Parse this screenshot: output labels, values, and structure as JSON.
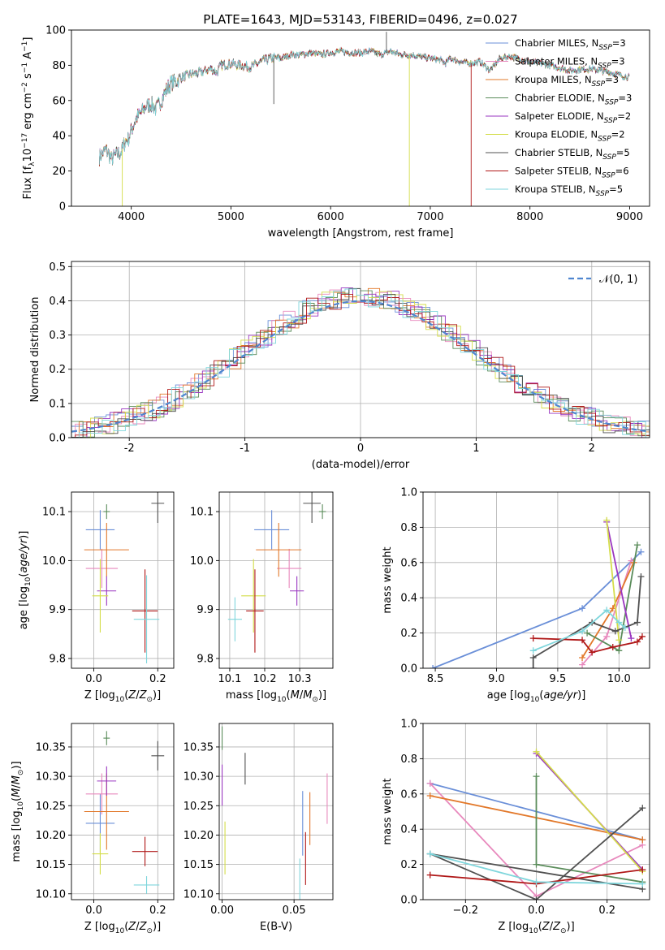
{
  "title": "PLATE=1643, MJD=53143, FIBERID=0496, z=0.027",
  "colors": {
    "Chabrier MILES": "#6a8fd8",
    "Salpeter MILES": "#e889bd",
    "Kroupa MILES": "#e2782a",
    "Chabrier ELODIE": "#5a8c5a",
    "Salpeter ELODIE": "#9a36c0",
    "Kroupa ELODIE": "#d4dd4a",
    "Chabrier STELIB": "#505050",
    "Salpeter STELIB": "#b01818",
    "Kroupa STELIB": "#7fd6dc"
  },
  "chart_data": [
    {
      "id": "spectrum",
      "type": "line",
      "xlabel": "wavelength [Angstrom, rest frame]",
      "ylabel": "Flux [f_λ10^-17 erg cm^-2 s^-1 A^-1]",
      "xlim": [
        3400,
        9200
      ],
      "ylim": [
        0,
        100
      ],
      "xticks": [
        4000,
        5000,
        6000,
        7000,
        8000,
        9000
      ],
      "yticks": [
        0,
        20,
        40,
        60,
        80,
        100
      ],
      "grid": false,
      "legend_position": "top-right",
      "legend": [
        {
          "name": "Chabrier MILES",
          "nssp": 3
        },
        {
          "name": "Salpeter MILES",
          "nssp": 3
        },
        {
          "name": "Kroupa MILES",
          "nssp": 3
        },
        {
          "name": "Chabrier ELODIE",
          "nssp": 3
        },
        {
          "name": "Salpeter ELODIE",
          "nssp": 2
        },
        {
          "name": "Kroupa ELODIE",
          "nssp": 2
        },
        {
          "name": "Chabrier STELIB",
          "nssp": 5
        },
        {
          "name": "Salpeter STELIB",
          "nssp": 6
        },
        {
          "name": "Kroupa STELIB",
          "nssp": 5
        }
      ],
      "continuum": [
        [
          3680,
          28
        ],
        [
          3750,
          32
        ],
        [
          3800,
          27
        ],
        [
          3850,
          29
        ],
        [
          3900,
          31
        ],
        [
          3940,
          37
        ],
        [
          3970,
          38
        ],
        [
          4000,
          43
        ],
        [
          4050,
          50
        ],
        [
          4100,
          53
        ],
        [
          4150,
          57
        ],
        [
          4200,
          58
        ],
        [
          4250,
          55
        ],
        [
          4300,
          60
        ],
        [
          4350,
          66
        ],
        [
          4400,
          70
        ],
        [
          4450,
          71
        ],
        [
          4500,
          73
        ],
        [
          4600,
          75
        ],
        [
          4700,
          76
        ],
        [
          4800,
          78
        ],
        [
          4860,
          76
        ],
        [
          4900,
          80
        ],
        [
          5000,
          81
        ],
        [
          5100,
          80
        ],
        [
          5200,
          79
        ],
        [
          5300,
          82
        ],
        [
          5400,
          84
        ],
        [
          5500,
          84
        ],
        [
          5600,
          86
        ],
        [
          5700,
          86
        ],
        [
          5800,
          87
        ],
        [
          5900,
          86
        ],
        [
          6000,
          87
        ],
        [
          6100,
          88
        ],
        [
          6200,
          87
        ],
        [
          6300,
          87
        ],
        [
          6400,
          88
        ],
        [
          6500,
          86
        ],
        [
          6560,
          87
        ],
        [
          6600,
          88
        ],
        [
          6700,
          86
        ],
        [
          6800,
          86
        ],
        [
          6900,
          85
        ],
        [
          7000,
          84
        ],
        [
          7100,
          83
        ],
        [
          7150,
          81
        ],
        [
          7200,
          84
        ],
        [
          7300,
          82
        ],
        [
          7400,
          81
        ],
        [
          7500,
          82
        ],
        [
          7600,
          77
        ],
        [
          7700,
          84
        ],
        [
          7800,
          85
        ],
        [
          8000,
          82
        ],
        [
          8200,
          80
        ],
        [
          8400,
          77
        ],
        [
          8600,
          78
        ],
        [
          8800,
          76
        ],
        [
          9000,
          73
        ]
      ],
      "features": [
        {
          "series": "Kroupa ELODIE",
          "x": 3910,
          "to_y": 0
        },
        {
          "series": "Chabrier STELIB",
          "x": 5430,
          "to_y": 58
        },
        {
          "series": "Kroupa ELODIE",
          "x": 6790,
          "to_y": 0
        },
        {
          "series": "Salpeter STELIB",
          "x": 7410,
          "to_y": 0
        },
        {
          "series": "Chabrier STELIB",
          "x": 6560,
          "to_y": 99
        }
      ]
    },
    {
      "id": "residuals",
      "type": "line",
      "xlabel": "(data-model)/error",
      "ylabel": "Normed distribution",
      "xlim": [
        -2.5,
        2.5
      ],
      "ylim": [
        0,
        0.515
      ],
      "xticks": [
        -2,
        -1,
        0,
        1,
        2
      ],
      "yticks": [
        0.0,
        0.1,
        0.2,
        0.3,
        0.4,
        0.5
      ],
      "grid": true,
      "legend_position": "top-right",
      "reference_label": "𝒩(0, 1)",
      "bin_width": 0.1
    },
    {
      "id": "z-age",
      "type": "scatter",
      "xlabel": "Z [log10(Z/Z⊙)]",
      "ylabel": "age  [log10(age/yr)]",
      "xlim": [
        -0.07,
        0.25
      ],
      "ylim": [
        9.78,
        10.14
      ],
      "xticks": [
        0.0,
        0.2
      ],
      "yticks": [
        9.8,
        9.9,
        10.0,
        10.1
      ],
      "grid": true,
      "points": [
        {
          "series": "Chabrier MILES",
          "x": 0.02,
          "y": 10.063,
          "xerr": 0.045,
          "yerr": 0.04
        },
        {
          "series": "Salpeter MILES",
          "x": 0.025,
          "y": 9.984,
          "xerr": 0.05,
          "yerr": 0.04
        },
        {
          "series": "Kroupa MILES",
          "x": 0.04,
          "y": 10.022,
          "xerr": 0.07,
          "yerr": 0.055
        },
        {
          "series": "Chabrier ELODIE",
          "x": 0.04,
          "y": 10.1,
          "xerr": 0.01,
          "yerr": 0.015
        },
        {
          "series": "Salpeter ELODIE",
          "x": 0.04,
          "y": 9.938,
          "xerr": 0.03,
          "yerr": 0.03
        },
        {
          "series": "Kroupa ELODIE",
          "x": 0.02,
          "y": 9.928,
          "xerr": 0.025,
          "yerr": 0.075
        },
        {
          "series": "Chabrier STELIB",
          "x": 0.2,
          "y": 10.117,
          "xerr": 0.02,
          "yerr": 0.04
        },
        {
          "series": "Salpeter STELIB",
          "x": 0.16,
          "y": 9.897,
          "xerr": 0.04,
          "yerr": 0.085
        },
        {
          "series": "Kroupa STELIB",
          "x": 0.165,
          "y": 9.88,
          "xerr": 0.04,
          "yerr": 0.09
        }
      ]
    },
    {
      "id": "mass-age",
      "type": "scatter",
      "xlabel": "mass [log10(M/M⊙)]",
      "ylabel": "",
      "xlim": [
        10.07,
        10.395
      ],
      "ylim": [
        9.78,
        10.14
      ],
      "xticks": [
        10.1,
        10.2,
        10.3
      ],
      "yticks": [
        9.8,
        9.9,
        10.0,
        10.1
      ],
      "grid": true,
      "points": [
        {
          "series": "Chabrier MILES",
          "x": 10.22,
          "y": 10.063,
          "xerr": 0.05,
          "yerr": 0.04
        },
        {
          "series": "Salpeter MILES",
          "x": 10.27,
          "y": 9.984,
          "xerr": 0.035,
          "yerr": 0.04
        },
        {
          "series": "Kroupa MILES",
          "x": 10.24,
          "y": 10.022,
          "xerr": 0.065,
          "yerr": 0.055
        },
        {
          "series": "Chabrier ELODIE",
          "x": 10.365,
          "y": 10.1,
          "xerr": 0.01,
          "yerr": 0.015
        },
        {
          "series": "Salpeter ELODIE",
          "x": 10.292,
          "y": 9.938,
          "xerr": 0.02,
          "yerr": 0.03
        },
        {
          "series": "Kroupa ELODIE",
          "x": 10.168,
          "y": 9.928,
          "xerr": 0.035,
          "yerr": 0.075
        },
        {
          "series": "Chabrier STELIB",
          "x": 10.335,
          "y": 10.117,
          "xerr": 0.025,
          "yerr": 0.04
        },
        {
          "series": "Salpeter STELIB",
          "x": 10.172,
          "y": 9.897,
          "xerr": 0.025,
          "yerr": 0.085
        },
        {
          "series": "Kroupa STELIB",
          "x": 10.115,
          "y": 9.88,
          "xerr": 0.02,
          "yerr": 0.045
        }
      ]
    },
    {
      "id": "age-weight",
      "type": "line",
      "xlabel": "age  [log10(age/yr)]",
      "ylabel": "mass weight",
      "xlim": [
        8.4,
        10.25
      ],
      "ylim": [
        0,
        1
      ],
      "xticks": [
        8.5,
        9.0,
        9.5,
        10.0
      ],
      "yticks": [
        0.0,
        0.2,
        0.4,
        0.6,
        0.8,
        1.0
      ],
      "grid": true,
      "series": [
        {
          "name": "Chabrier MILES",
          "points": [
            [
              8.48,
              0.0
            ],
            [
              9.7,
              0.34
            ],
            [
              10.18,
              0.66
            ]
          ]
        },
        {
          "name": "Salpeter MILES",
          "points": [
            [
              9.7,
              0.02
            ],
            [
              9.9,
              0.18
            ],
            [
              10.1,
              0.61
            ]
          ]
        },
        {
          "name": "Kroupa MILES",
          "points": [
            [
              9.7,
              0.06
            ],
            [
              9.95,
              0.34
            ],
            [
              10.12,
              0.6
            ]
          ]
        },
        {
          "name": "Chabrier ELODIE",
          "points": [
            [
              9.74,
              0.2
            ],
            [
              10.0,
              0.1
            ],
            [
              10.15,
              0.7
            ]
          ]
        },
        {
          "name": "Salpeter ELODIE",
          "points": [
            [
              9.9,
              0.83
            ],
            [
              10.1,
              0.17
            ]
          ]
        },
        {
          "name": "Kroupa ELODIE",
          "points": [
            [
              9.9,
              0.84
            ],
            [
              10.0,
              0.16
            ]
          ]
        },
        {
          "name": "Chabrier STELIB",
          "points": [
            [
              9.3,
              0.0
            ],
            [
              9.3,
              0.06
            ],
            [
              9.78,
              0.26
            ],
            [
              9.97,
              0.21
            ],
            [
              10.15,
              0.26
            ],
            [
              10.18,
              0.52
            ]
          ]
        },
        {
          "name": "Salpeter STELIB",
          "points": [
            [
              9.3,
              0.17
            ],
            [
              9.7,
              0.16
            ],
            [
              9.78,
              0.09
            ],
            [
              9.95,
              0.12
            ],
            [
              10.15,
              0.15
            ],
            [
              10.19,
              0.18
            ]
          ]
        },
        {
          "name": "Kroupa STELIB",
          "points": [
            [
              9.3,
              0.1
            ],
            [
              9.7,
              0.21
            ],
            [
              9.9,
              0.33
            ],
            [
              10.0,
              0.26
            ],
            [
              10.05,
              0.23
            ]
          ]
        }
      ]
    },
    {
      "id": "z-mass",
      "type": "scatter",
      "xlabel": "Z [log10(Z/Z⊙)]",
      "ylabel": "mass [log10(M/M⊙)]",
      "xlim": [
        -0.07,
        0.25
      ],
      "ylim": [
        10.09,
        10.39
      ],
      "xticks": [
        0.0,
        0.2
      ],
      "yticks": [
        10.1,
        10.15,
        10.2,
        10.25,
        10.3,
        10.35
      ],
      "grid": true,
      "points": [
        {
          "series": "Chabrier MILES",
          "x": 0.02,
          "y": 10.22,
          "xerr": 0.045,
          "yerr": 0.05
        },
        {
          "series": "Salpeter MILES",
          "x": 0.025,
          "y": 10.27,
          "xerr": 0.05,
          "yerr": 0.035
        },
        {
          "series": "Kroupa MILES",
          "x": 0.04,
          "y": 10.24,
          "xerr": 0.07,
          "yerr": 0.065
        },
        {
          "series": "Chabrier ELODIE",
          "x": 0.04,
          "y": 10.365,
          "xerr": 0.01,
          "yerr": 0.012
        },
        {
          "series": "Salpeter ELODIE",
          "x": 0.04,
          "y": 10.292,
          "xerr": 0.03,
          "yerr": 0.025
        },
        {
          "series": "Kroupa ELODIE",
          "x": 0.02,
          "y": 10.168,
          "xerr": 0.025,
          "yerr": 0.035
        },
        {
          "series": "Chabrier STELIB",
          "x": 0.2,
          "y": 10.335,
          "xerr": 0.02,
          "yerr": 0.025
        },
        {
          "series": "Salpeter STELIB",
          "x": 0.16,
          "y": 10.172,
          "xerr": 0.04,
          "yerr": 0.025
        },
        {
          "series": "Kroupa STELIB",
          "x": 0.165,
          "y": 10.115,
          "xerr": 0.04,
          "yerr": 0.015
        }
      ]
    },
    {
      "id": "ebv-mass",
      "type": "scatter",
      "xlabel": "E(B-V)",
      "ylabel": "",
      "xlim": [
        -0.002,
        0.077
      ],
      "ylim": [
        10.09,
        10.39
      ],
      "xticks": [
        0.0,
        0.05
      ],
      "yticks": [
        10.1,
        10.15,
        10.2,
        10.25,
        10.3,
        10.35
      ],
      "grid": true,
      "points": [
        {
          "series": "Chabrier MILES",
          "x": 0.056,
          "y": 10.22,
          "xerr": 0,
          "yerr": 0.055
        },
        {
          "series": "Salpeter MILES",
          "x": 0.073,
          "y": 10.262,
          "xerr": 0,
          "yerr": 0.043
        },
        {
          "series": "Kroupa MILES",
          "x": 0.061,
          "y": 10.228,
          "xerr": 0,
          "yerr": 0.045
        },
        {
          "series": "Chabrier ELODIE",
          "x": 0.0,
          "y": 10.365,
          "xerr": 0,
          "yerr": 0.02
        },
        {
          "series": "Salpeter ELODIE",
          "x": 0.0,
          "y": 10.285,
          "xerr": 0,
          "yerr": 0.035
        },
        {
          "series": "Kroupa ELODIE",
          "x": 0.002,
          "y": 10.178,
          "xerr": 0,
          "yerr": 0.045
        },
        {
          "series": "Chabrier STELIB",
          "x": 0.016,
          "y": 10.313,
          "xerr": 0,
          "yerr": 0.027
        },
        {
          "series": "Salpeter STELIB",
          "x": 0.058,
          "y": 10.16,
          "xerr": 0,
          "yerr": 0.045
        },
        {
          "series": "Kroupa STELIB",
          "x": 0.054,
          "y": 10.125,
          "xerr": 0,
          "yerr": 0.035
        }
      ]
    },
    {
      "id": "z-weight",
      "type": "line",
      "xlabel": "Z [log10(Z/Z⊙)]",
      "ylabel": "mass weight",
      "xlim": [
        -0.32,
        0.32
      ],
      "ylim": [
        0,
        1
      ],
      "xticks": [
        -0.2,
        0.0,
        0.2
      ],
      "yticks": [
        0.0,
        0.2,
        0.4,
        0.6,
        0.8,
        1.0
      ],
      "grid": true,
      "series": [
        {
          "name": "Chabrier MILES",
          "points": [
            [
              -0.3,
              0.66
            ],
            [
              0.3,
              0.34
            ]
          ]
        },
        {
          "name": "Salpeter MILES",
          "points": [
            [
              -0.3,
              0.66
            ],
            [
              0.0,
              0.02
            ],
            [
              0.3,
              0.31
            ]
          ]
        },
        {
          "name": "Kroupa MILES",
          "points": [
            [
              -0.3,
              0.59
            ],
            [
              0.3,
              0.34
            ]
          ]
        },
        {
          "name": "Chabrier ELODIE",
          "points": [
            [
              0.0,
              0.7
            ],
            [
              0.0,
              0.2
            ],
            [
              0.3,
              0.1
            ]
          ]
        },
        {
          "name": "Salpeter ELODIE",
          "points": [
            [
              0.0,
              0.83
            ],
            [
              0.3,
              0.17
            ]
          ]
        },
        {
          "name": "Kroupa ELODIE",
          "points": [
            [
              0.0,
              0.84
            ],
            [
              0.3,
              0.16
            ]
          ]
        },
        {
          "name": "Chabrier STELIB",
          "points": [
            [
              0.3,
              0.52
            ],
            [
              0.0,
              0.0
            ],
            [
              -0.3,
              0.26
            ],
            [
              0.3,
              0.06
            ]
          ]
        },
        {
          "name": "Salpeter STELIB",
          "points": [
            [
              -0.3,
              0.14
            ],
            [
              0.0,
              0.09
            ],
            [
              0.3,
              0.17
            ]
          ]
        },
        {
          "name": "Kroupa STELIB",
          "points": [
            [
              -0.3,
              0.26
            ],
            [
              0.0,
              0.1
            ],
            [
              0.3,
              0.09
            ]
          ]
        }
      ]
    }
  ]
}
